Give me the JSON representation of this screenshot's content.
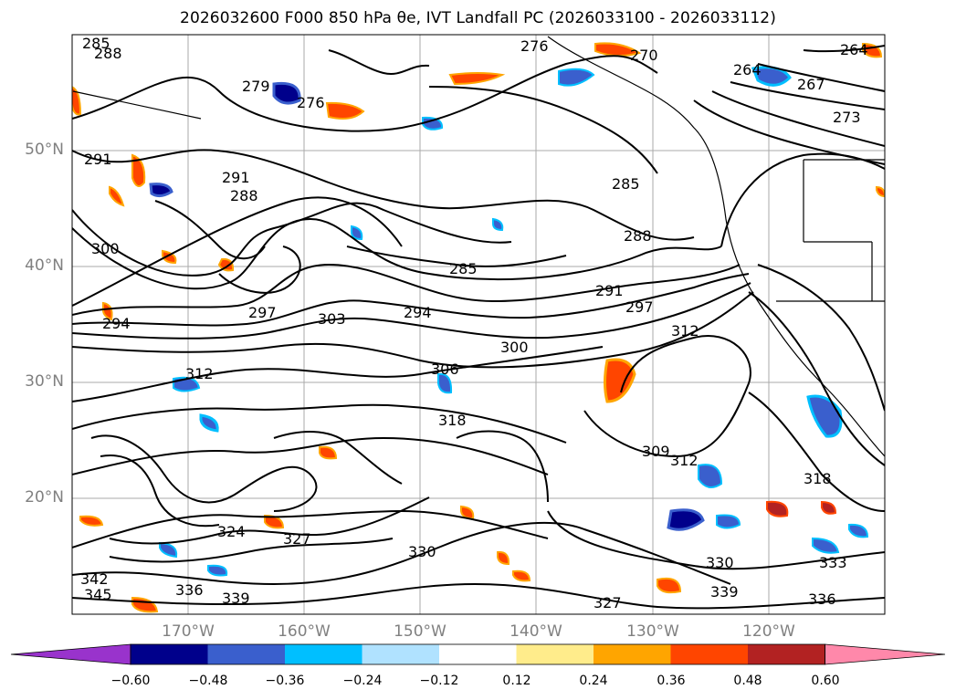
{
  "title": "2026032600 F000 850 hPa θe, IVT Landfall PC (2026033100 - 2026033112)",
  "lat_labels": [
    "50°N",
    "40°N",
    "30°N",
    "20°N"
  ],
  "lon_labels": [
    "170°W",
    "160°W",
    "150°W",
    "140°W",
    "130°W",
    "120°W"
  ],
  "contour_labels": [
    "285",
    "288",
    "276",
    "270",
    "264",
    "264",
    "267",
    "273",
    "279",
    "276",
    "291",
    "291",
    "288",
    "285",
    "288",
    "300",
    "297",
    "285",
    "291",
    "294",
    "303",
    "294",
    "297",
    "300",
    "312",
    "306",
    "312",
    "318",
    "309",
    "312",
    "318",
    "324",
    "327",
    "330",
    "336",
    "339",
    "339",
    "336",
    "342",
    "345",
    "333",
    "330",
    "327"
  ],
  "colorbar": {
    "ticks": [
      "−0.60",
      "−0.48",
      "−0.36",
      "−0.24",
      "−0.12",
      "0.12",
      "0.24",
      "0.36",
      "0.48",
      "0.60"
    ],
    "colors": [
      "#9933cc",
      "#00008b",
      "#3a5fcd",
      "#00bfff",
      "#b0e2ff",
      "#ffffff",
      "#ffec8b",
      "#ffa500",
      "#ff4500",
      "#b22222",
      "#ff88aa"
    ]
  }
}
